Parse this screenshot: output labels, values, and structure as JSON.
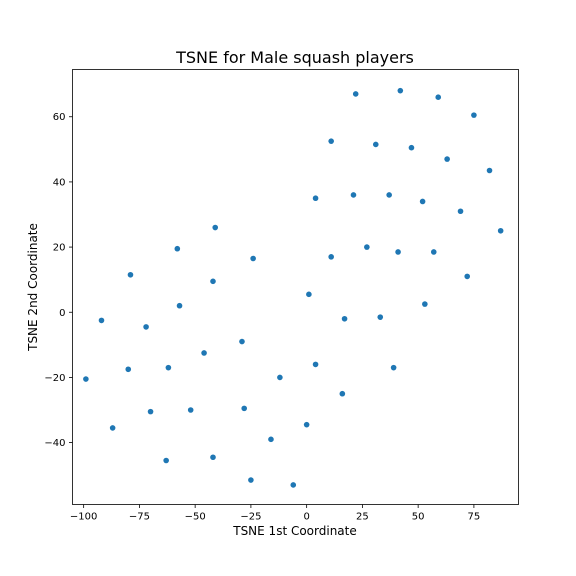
{
  "chart_data": {
    "type": "scatter",
    "title": "TSNE for Male squash players",
    "xlabel": "TSNE 1st Coordinate",
    "ylabel": "TSNE 2nd Coordinate",
    "xlim": [
      -105,
      95
    ],
    "ylim": [
      -59,
      74.5
    ],
    "xticks": [
      -100,
      -75,
      -50,
      -25,
      0,
      25,
      50,
      75
    ],
    "yticks": [
      -40,
      -20,
      0,
      20,
      40,
      60
    ],
    "grid": false,
    "marker_color": "#1f77b4",
    "points": [
      {
        "x": 22,
        "y": 67
      },
      {
        "x": 42,
        "y": 68
      },
      {
        "x": 59,
        "y": 66
      },
      {
        "x": 75,
        "y": 60.5
      },
      {
        "x": 11,
        "y": 52.5
      },
      {
        "x": 31,
        "y": 51.5
      },
      {
        "x": 47,
        "y": 50.5
      },
      {
        "x": 63,
        "y": 47
      },
      {
        "x": 82,
        "y": 43.5
      },
      {
        "x": 21,
        "y": 36
      },
      {
        "x": 37,
        "y": 36
      },
      {
        "x": 4,
        "y": 35
      },
      {
        "x": 52,
        "y": 34
      },
      {
        "x": 69,
        "y": 31
      },
      {
        "x": 87,
        "y": 25
      },
      {
        "x": -41,
        "y": 26
      },
      {
        "x": -58,
        "y": 19.5
      },
      {
        "x": 27,
        "y": 20
      },
      {
        "x": -24,
        "y": 16.5
      },
      {
        "x": 11,
        "y": 17
      },
      {
        "x": 41,
        "y": 18.5
      },
      {
        "x": 57,
        "y": 18.5
      },
      {
        "x": -79,
        "y": 11.5
      },
      {
        "x": -42,
        "y": 9.5
      },
      {
        "x": 72,
        "y": 11
      },
      {
        "x": 1,
        "y": 5.5
      },
      {
        "x": -57,
        "y": 2
      },
      {
        "x": 53,
        "y": 2.5
      },
      {
        "x": -92,
        "y": -2.5
      },
      {
        "x": 17,
        "y": -2
      },
      {
        "x": 33,
        "y": -1.5
      },
      {
        "x": -72,
        "y": -4.5
      },
      {
        "x": -29,
        "y": -9
      },
      {
        "x": -46,
        "y": -12.5
      },
      {
        "x": 4,
        "y": -16
      },
      {
        "x": -80,
        "y": -17.5
      },
      {
        "x": -62,
        "y": -17
      },
      {
        "x": 39,
        "y": -17
      },
      {
        "x": -12,
        "y": -20
      },
      {
        "x": -99,
        "y": -20.5
      },
      {
        "x": 16,
        "y": -25
      },
      {
        "x": -28,
        "y": -29.5
      },
      {
        "x": -52,
        "y": -30
      },
      {
        "x": -70,
        "y": -30.5
      },
      {
        "x": 0,
        "y": -34.5
      },
      {
        "x": -87,
        "y": -35.5
      },
      {
        "x": -16,
        "y": -39
      },
      {
        "x": -42,
        "y": -44.5
      },
      {
        "x": -63,
        "y": -45.5
      },
      {
        "x": -25,
        "y": -51.5
      },
      {
        "x": -6,
        "y": -53
      }
    ]
  }
}
